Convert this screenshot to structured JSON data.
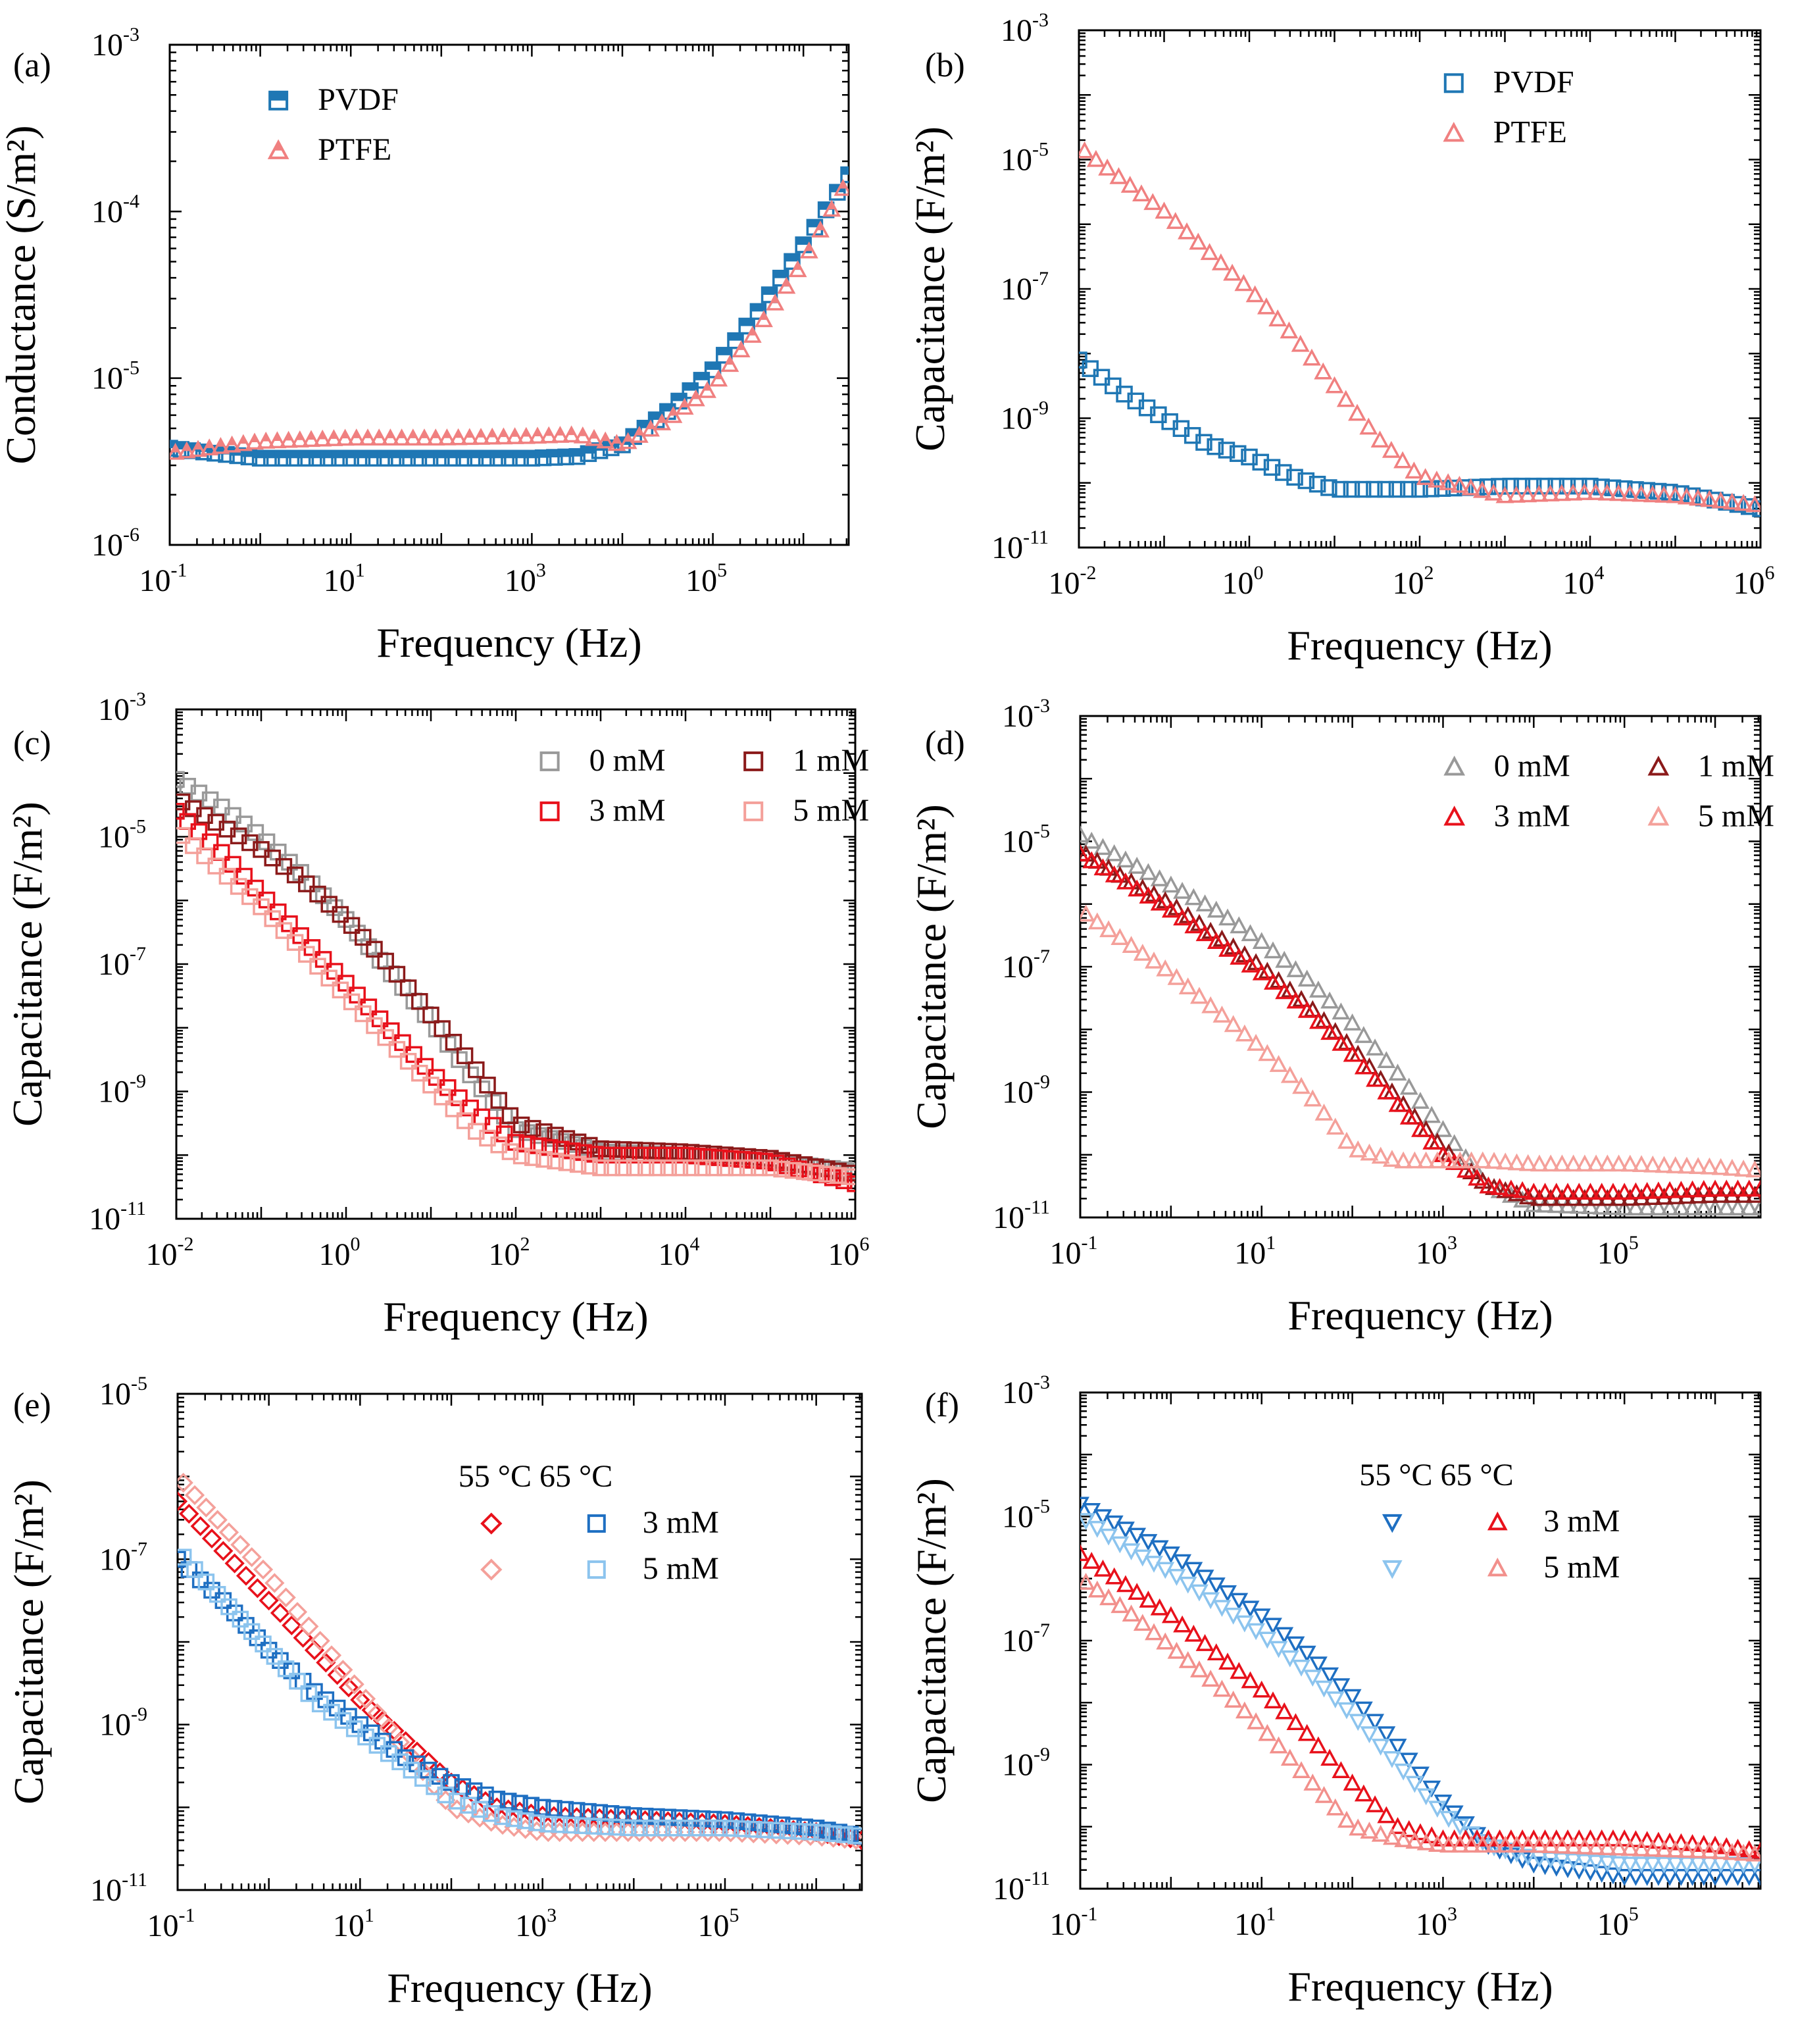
{
  "colors": {
    "pvdf": "#1f77b4",
    "ptfe": "#f08080",
    "gray": "#999999",
    "darkred": "#8b1a1a",
    "red": "#e8111b",
    "pink": "#f4a09a",
    "blue": "#1e6fc2",
    "lightblue": "#8cc4ee",
    "salmon": "#f2908c"
  },
  "chart_data": [
    {
      "id": "a",
      "type": "scatter",
      "panel_label": "(a)",
      "xlabel": "Frequency (Hz)",
      "ylabel": "Conductance (S/m²)",
      "xlog": [
        -1,
        6.5
      ],
      "ylog": [
        -6,
        -3
      ],
      "xticks": [
        "-1",
        "1",
        "3",
        "5"
      ],
      "yticks": [
        "-6",
        "-5",
        "-4",
        "-3"
      ],
      "legend": {
        "position": "top-left",
        "title": "",
        "rows": [
          [
            "PVDF"
          ],
          [
            "PTFE"
          ]
        ]
      },
      "series": [
        {
          "name": "PVDF",
          "marker": "square-half",
          "color": "pvdf",
          "x_log": [
            -1,
            0,
            1,
            2,
            3,
            3.5,
            4,
            4.5,
            5,
            5.5,
            6,
            6.5
          ],
          "y_log": [
            -5.42,
            -5.48,
            -5.48,
            -5.48,
            -5.48,
            -5.47,
            -5.4,
            -5.2,
            -4.95,
            -4.6,
            -4.2,
            -3.78
          ]
        },
        {
          "name": "PTFE",
          "marker": "triangle-half",
          "color": "ptfe",
          "x_log": [
            -1,
            0,
            1,
            2,
            3,
            3.5,
            4,
            4.5,
            5,
            5.5,
            6,
            6.5
          ],
          "y_log": [
            -5.45,
            -5.38,
            -5.36,
            -5.36,
            -5.35,
            -5.34,
            -5.4,
            -5.25,
            -5.05,
            -4.7,
            -4.3,
            -3.8
          ]
        }
      ]
    },
    {
      "id": "b",
      "type": "scatter",
      "panel_label": "(b)",
      "xlabel": "Frequency (Hz)",
      "ylabel": "Capacitance (F/m²)",
      "xlog": [
        -2,
        6
      ],
      "ylog": [
        -11,
        -3
      ],
      "xticks": [
        "-2",
        "0",
        "2",
        "4",
        "6"
      ],
      "yticks": [
        "-11",
        "-9",
        "-7",
        "-5",
        "-3"
      ],
      "legend": {
        "position": "top-right",
        "title": "",
        "rows": [
          [
            "PVDF"
          ],
          [
            "PTFE"
          ]
        ]
      },
      "series": [
        {
          "name": "PVDF",
          "marker": "square",
          "color": "pvdf",
          "x_log": [
            -2,
            -1.5,
            -1,
            -0.5,
            0,
            0.5,
            1,
            1.5,
            2,
            3,
            4,
            5,
            6
          ],
          "y_log": [
            -8.1,
            -8.6,
            -9.0,
            -9.4,
            -9.6,
            -9.9,
            -10.1,
            -10.1,
            -10.1,
            -10.05,
            -10.05,
            -10.15,
            -10.4
          ]
        },
        {
          "name": "PTFE",
          "marker": "triangle",
          "color": "ptfe",
          "x_log": [
            -2,
            -1.5,
            -1,
            -0.5,
            0,
            0.5,
            1,
            1.5,
            2,
            3,
            4,
            5,
            6
          ],
          "y_log": [
            -4.8,
            -5.3,
            -5.8,
            -6.4,
            -7.0,
            -7.7,
            -8.5,
            -9.3,
            -9.9,
            -10.2,
            -10.15,
            -10.2,
            -10.35
          ]
        }
      ]
    },
    {
      "id": "c",
      "type": "scatter",
      "panel_label": "(c)",
      "xlabel": "Frequency (Hz)",
      "ylabel": "Capacitance (F/m²)",
      "xlog": [
        -2,
        6
      ],
      "ylog": [
        -11,
        -3
      ],
      "xticks": [
        "-2",
        "0",
        "2",
        "4",
        "6"
      ],
      "yticks": [
        "-11",
        "-9",
        "-7",
        "-5",
        "-3"
      ],
      "legend": {
        "position": "top-right",
        "title": "",
        "rows": [
          [
            "0 mM",
            "1 mM"
          ],
          [
            "3 mM",
            "5 mM"
          ]
        ]
      },
      "series": [
        {
          "name": "0 mM",
          "marker": "square",
          "color": "gray",
          "x_log": [
            -2,
            -1.5,
            -1,
            -0.5,
            0,
            0.5,
            1,
            1.5,
            2,
            3,
            4,
            5,
            6
          ],
          "y_log": [
            -4.1,
            -4.5,
            -5.0,
            -5.6,
            -6.3,
            -7.1,
            -7.9,
            -8.8,
            -9.6,
            -9.95,
            -10.0,
            -10.1,
            -10.25
          ]
        },
        {
          "name": "1 mM",
          "marker": "square",
          "color": "darkred",
          "x_log": [
            -2,
            -1.5,
            -1,
            -0.5,
            0,
            0.5,
            1,
            1.5,
            2,
            3,
            4,
            5,
            6
          ],
          "y_log": [
            -4.4,
            -4.8,
            -5.2,
            -5.7,
            -6.3,
            -7.0,
            -7.8,
            -8.6,
            -9.5,
            -9.9,
            -9.95,
            -10.05,
            -10.3
          ]
        },
        {
          "name": "3 mM",
          "marker": "square",
          "color": "red",
          "x_log": [
            -2,
            -1.5,
            -1,
            -0.5,
            0,
            0.5,
            1,
            1.5,
            2,
            3,
            4,
            5,
            6
          ],
          "y_log": [
            -4.6,
            -5.2,
            -5.9,
            -6.6,
            -7.3,
            -8.0,
            -8.7,
            -9.3,
            -9.8,
            -10.0,
            -10.0,
            -10.1,
            -10.45
          ]
        },
        {
          "name": "5 mM",
          "marker": "square",
          "color": "pink",
          "x_log": [
            -2,
            -1.5,
            -1,
            -0.5,
            0,
            0.5,
            1,
            1.5,
            2,
            3,
            4,
            5,
            6
          ],
          "y_log": [
            -4.9,
            -5.5,
            -6.1,
            -6.8,
            -7.5,
            -8.2,
            -8.9,
            -9.6,
            -10.0,
            -10.2,
            -10.2,
            -10.2,
            -10.35
          ]
        }
      ]
    },
    {
      "id": "d",
      "type": "scatter",
      "panel_label": "(d)",
      "xlabel": "Frequency (Hz)",
      "ylabel": "Capacitance (F/m²)",
      "xlog": [
        -1,
        6.5
      ],
      "ylog": [
        -11,
        -3
      ],
      "xticks": [
        "-1",
        "1",
        "3",
        "5"
      ],
      "yticks": [
        "-11",
        "-9",
        "-7",
        "-5",
        "-3"
      ],
      "legend": {
        "position": "top-right",
        "title": "",
        "rows": [
          [
            "0 mM",
            "1 mM"
          ],
          [
            "3 mM",
            "5 mM"
          ]
        ]
      },
      "series": [
        {
          "name": "0 mM",
          "marker": "triangle",
          "color": "gray",
          "x_log": [
            -1,
            -0.5,
            0,
            0.5,
            1,
            1.5,
            2,
            2.5,
            3,
            3.5,
            4,
            5,
            6,
            6.5
          ],
          "y_log": [
            -4.9,
            -5.3,
            -5.7,
            -6.1,
            -6.6,
            -7.2,
            -7.9,
            -8.7,
            -9.6,
            -10.5,
            -10.8,
            -10.85,
            -10.85,
            -10.85
          ]
        },
        {
          "name": "1 mM",
          "marker": "triangle",
          "color": "darkred",
          "x_log": [
            -1,
            -0.5,
            0,
            0.5,
            1,
            1.5,
            2,
            2.5,
            3,
            3.5,
            4,
            5,
            6,
            6.5
          ],
          "y_log": [
            -5.15,
            -5.6,
            -6.0,
            -6.5,
            -7.0,
            -7.6,
            -8.3,
            -9.1,
            -9.9,
            -10.5,
            -10.7,
            -10.7,
            -10.65,
            -10.65
          ]
        },
        {
          "name": "3 mM",
          "marker": "triangle",
          "color": "red",
          "x_log": [
            -1,
            -0.5,
            0,
            0.5,
            1,
            1.5,
            2,
            2.5,
            3,
            3.5,
            4,
            5,
            6,
            6.5
          ],
          "y_log": [
            -5.2,
            -5.65,
            -6.1,
            -6.6,
            -7.1,
            -7.7,
            -8.4,
            -9.2,
            -10.0,
            -10.5,
            -10.6,
            -10.6,
            -10.55,
            -10.55
          ]
        },
        {
          "name": "5 mM",
          "marker": "triangle",
          "color": "pink",
          "x_log": [
            -1,
            -0.5,
            0,
            0.5,
            1,
            1.5,
            2,
            2.5,
            3,
            3.5,
            4,
            5,
            6,
            6.5
          ],
          "y_log": [
            -6.1,
            -6.6,
            -7.1,
            -7.7,
            -8.3,
            -9.0,
            -9.9,
            -10.1,
            -10.1,
            -10.1,
            -10.15,
            -10.15,
            -10.2,
            -10.25
          ]
        }
      ]
    },
    {
      "id": "e",
      "type": "scatter",
      "panel_label": "(e)",
      "xlabel": "Frequency (Hz)",
      "ylabel": "Capacitance (F/m²)",
      "xlog": [
        -1,
        6.5
      ],
      "ylog": [
        -11,
        -5
      ],
      "xticks": [
        "-1",
        "1",
        "3",
        "5"
      ],
      "yticks": [
        "-11",
        "-9",
        "-7",
        "-5"
      ],
      "legend": {
        "position": "top-center",
        "title": "55 °C  65 °C",
        "rows": [
          [
            "3 mM"
          ],
          [
            "5 mM"
          ]
        ]
      },
      "series": [
        {
          "name": "55 °C 3 mM",
          "marker": "diamond",
          "color": "red",
          "x_log": [
            -1,
            -0.5,
            0,
            0.5,
            1,
            1.5,
            2,
            2.5,
            3,
            4,
            5,
            6,
            6.5
          ],
          "y_log": [
            -6.3,
            -6.9,
            -7.5,
            -8.1,
            -8.7,
            -9.2,
            -9.7,
            -10.0,
            -10.1,
            -10.15,
            -10.2,
            -10.3,
            -10.4
          ]
        },
        {
          "name": "55 °C 5 mM",
          "marker": "diamond",
          "color": "pink",
          "x_log": [
            -1,
            -0.5,
            0,
            0.5,
            1,
            1.5,
            2,
            2.5,
            3,
            4,
            5,
            6,
            6.5
          ],
          "y_log": [
            -6.0,
            -6.6,
            -7.2,
            -7.9,
            -8.6,
            -9.3,
            -10.0,
            -10.2,
            -10.3,
            -10.3,
            -10.3,
            -10.35,
            -10.4
          ]
        },
        {
          "name": "65 °C 3 mM",
          "marker": "square",
          "color": "blue",
          "x_log": [
            -1,
            -0.5,
            0,
            0.5,
            1,
            1.5,
            2,
            2.5,
            3,
            4,
            5,
            6,
            6.5
          ],
          "y_log": [
            -7.0,
            -7.5,
            -8.1,
            -8.6,
            -9.0,
            -9.4,
            -9.7,
            -9.9,
            -10.0,
            -10.1,
            -10.15,
            -10.25,
            -10.35
          ]
        },
        {
          "name": "65 °C 5 mM",
          "marker": "square",
          "color": "lightblue",
          "x_log": [
            -1,
            -0.5,
            0,
            0.5,
            1,
            1.5,
            2,
            2.5,
            3,
            4,
            5,
            6,
            6.5
          ],
          "y_log": [
            -6.9,
            -7.5,
            -8.1,
            -8.7,
            -9.1,
            -9.5,
            -9.9,
            -10.1,
            -10.2,
            -10.25,
            -10.25,
            -10.3,
            -10.35
          ]
        }
      ]
    },
    {
      "id": "f",
      "type": "scatter",
      "panel_label": "(f)",
      "xlabel": "Frequency (Hz)",
      "ylabel": "Capacitance (F/m²)",
      "xlog": [
        -1,
        6.5
      ],
      "ylog": [
        -11,
        -3
      ],
      "xticks": [
        "-1",
        "1",
        "3",
        "5"
      ],
      "yticks": [
        "-11",
        "-9",
        "-7",
        "-5",
        "-3"
      ],
      "legend": {
        "position": "top-center",
        "title": "55 °C  65 °C",
        "rows": [
          [
            "3 mM"
          ],
          [
            "5 mM"
          ]
        ]
      },
      "series": [
        {
          "name": "55 °C 3 mM",
          "marker": "triangle-down",
          "color": "blue",
          "x_log": [
            -1,
            -0.5,
            0,
            0.5,
            1,
            1.5,
            2,
            2.5,
            3,
            3.5,
            4,
            5,
            6,
            6.5
          ],
          "y_log": [
            -4.8,
            -5.2,
            -5.6,
            -6.1,
            -6.6,
            -7.2,
            -7.9,
            -8.7,
            -9.6,
            -10.3,
            -10.6,
            -10.8,
            -10.8,
            -10.8
          ]
        },
        {
          "name": "55 °C 5 mM",
          "marker": "triangle-down",
          "color": "lightblue",
          "x_log": [
            -1,
            -0.5,
            0,
            0.5,
            1,
            1.5,
            2,
            2.5,
            3,
            3.5,
            4,
            5,
            6,
            6.5
          ],
          "y_log": [
            -5.0,
            -5.5,
            -5.9,
            -6.4,
            -6.9,
            -7.5,
            -8.2,
            -9.0,
            -9.8,
            -10.3,
            -10.5,
            -10.6,
            -10.6,
            -10.6
          ]
        },
        {
          "name": "65 °C 3 mM",
          "marker": "triangle",
          "color": "red",
          "x_log": [
            -1,
            -0.5,
            0,
            0.5,
            1,
            1.5,
            2,
            2.5,
            3,
            3.5,
            4,
            5,
            6,
            6.5
          ],
          "y_log": [
            -5.6,
            -6.1,
            -6.6,
            -7.2,
            -7.8,
            -8.5,
            -9.3,
            -10.0,
            -10.2,
            -10.2,
            -10.2,
            -10.2,
            -10.3,
            -10.4
          ]
        },
        {
          "name": "65 °C 5 mM",
          "marker": "triangle",
          "color": "salmon",
          "x_log": [
            -1,
            -0.5,
            0,
            0.5,
            1,
            1.5,
            2,
            2.5,
            3,
            3.5,
            4,
            5,
            6,
            6.5
          ],
          "y_log": [
            -6.0,
            -6.5,
            -7.1,
            -7.7,
            -8.4,
            -9.2,
            -10.0,
            -10.2,
            -10.3,
            -10.3,
            -10.3,
            -10.35,
            -10.4,
            -10.45
          ]
        }
      ]
    }
  ]
}
